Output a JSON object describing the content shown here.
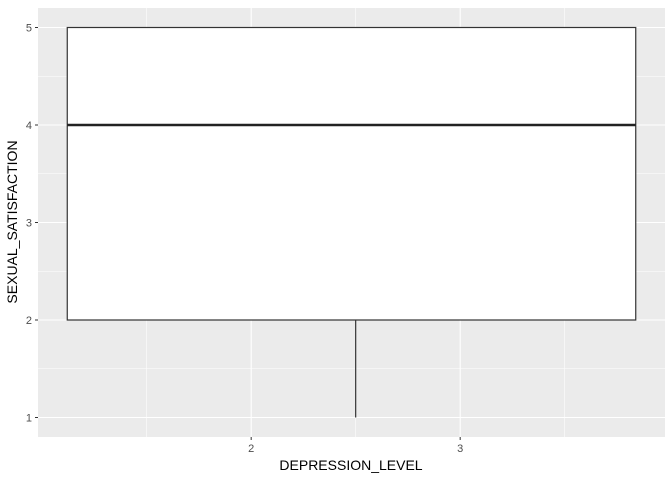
{
  "chart_data": {
    "type": "boxplot",
    "title": "",
    "xlabel": "DEPRESSION_LEVEL",
    "ylabel": "SEXUAL_SATISFACTION",
    "x_ticks": [
      2,
      3
    ],
    "xlim": [
      0.98,
      3.98
    ],
    "y_ticks": [
      1,
      2,
      3,
      4,
      5
    ],
    "ylim": [
      0.8,
      5.2
    ],
    "grid": true,
    "boxes": [
      {
        "x_center": 2.5,
        "x_range": [
          1.12,
          3.84
        ],
        "min": 1,
        "q1": 2,
        "median": 4,
        "q3": 5,
        "max": 5
      }
    ]
  }
}
